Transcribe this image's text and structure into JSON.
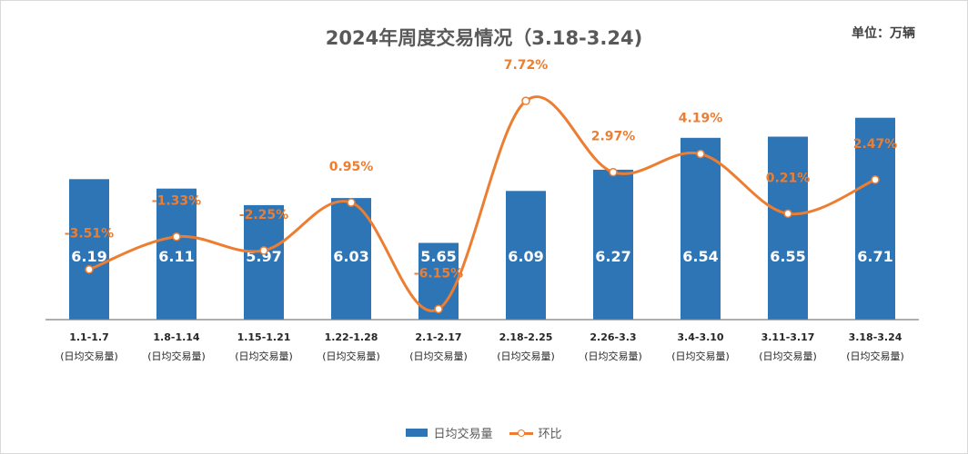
{
  "chart_data": {
    "type": "bar+line",
    "title": "2024年周度交易情况（3.18-3.24)",
    "unit_label": "单位：万辆",
    "categories": [
      "1.1-1.7",
      "1.8-1.14",
      "1.15-1.21",
      "1.22-1.28",
      "2.1-2.17",
      "2.18-2.25",
      "2.26-3.3",
      "3.4-3.10",
      "3.11-3.17",
      "3.18-3.24"
    ],
    "category_sublabel": "(日均交易量)",
    "series": [
      {
        "name": "日均交易量",
        "type": "bar",
        "color": "#2e75b6",
        "values": [
          6.19,
          6.11,
          5.97,
          6.03,
          5.65,
          6.09,
          6.27,
          6.54,
          6.55,
          6.71
        ],
        "labels": [
          "6.19",
          "6.11",
          "5.97",
          "6.03",
          "5.65",
          "6.09",
          "6.27",
          "6.54",
          "6.55",
          "6.71"
        ]
      },
      {
        "name": "环比",
        "type": "line",
        "color": "#ed7d31",
        "values": [
          -3.51,
          -1.33,
          -2.25,
          0.95,
          -6.15,
          7.72,
          2.97,
          4.19,
          0.21,
          2.47
        ],
        "labels": [
          "-3.51%",
          "-1.33%",
          "-2.25%",
          "0.95%",
          "-6.15%",
          "7.72%",
          "2.97%",
          "4.19%",
          "0.21%",
          "2.47%"
        ]
      }
    ],
    "bar_axis_range": [
      5.0,
      6.8
    ],
    "line_axis_range": [
      -10,
      9
    ],
    "grid": false,
    "legend_position": "bottom"
  }
}
